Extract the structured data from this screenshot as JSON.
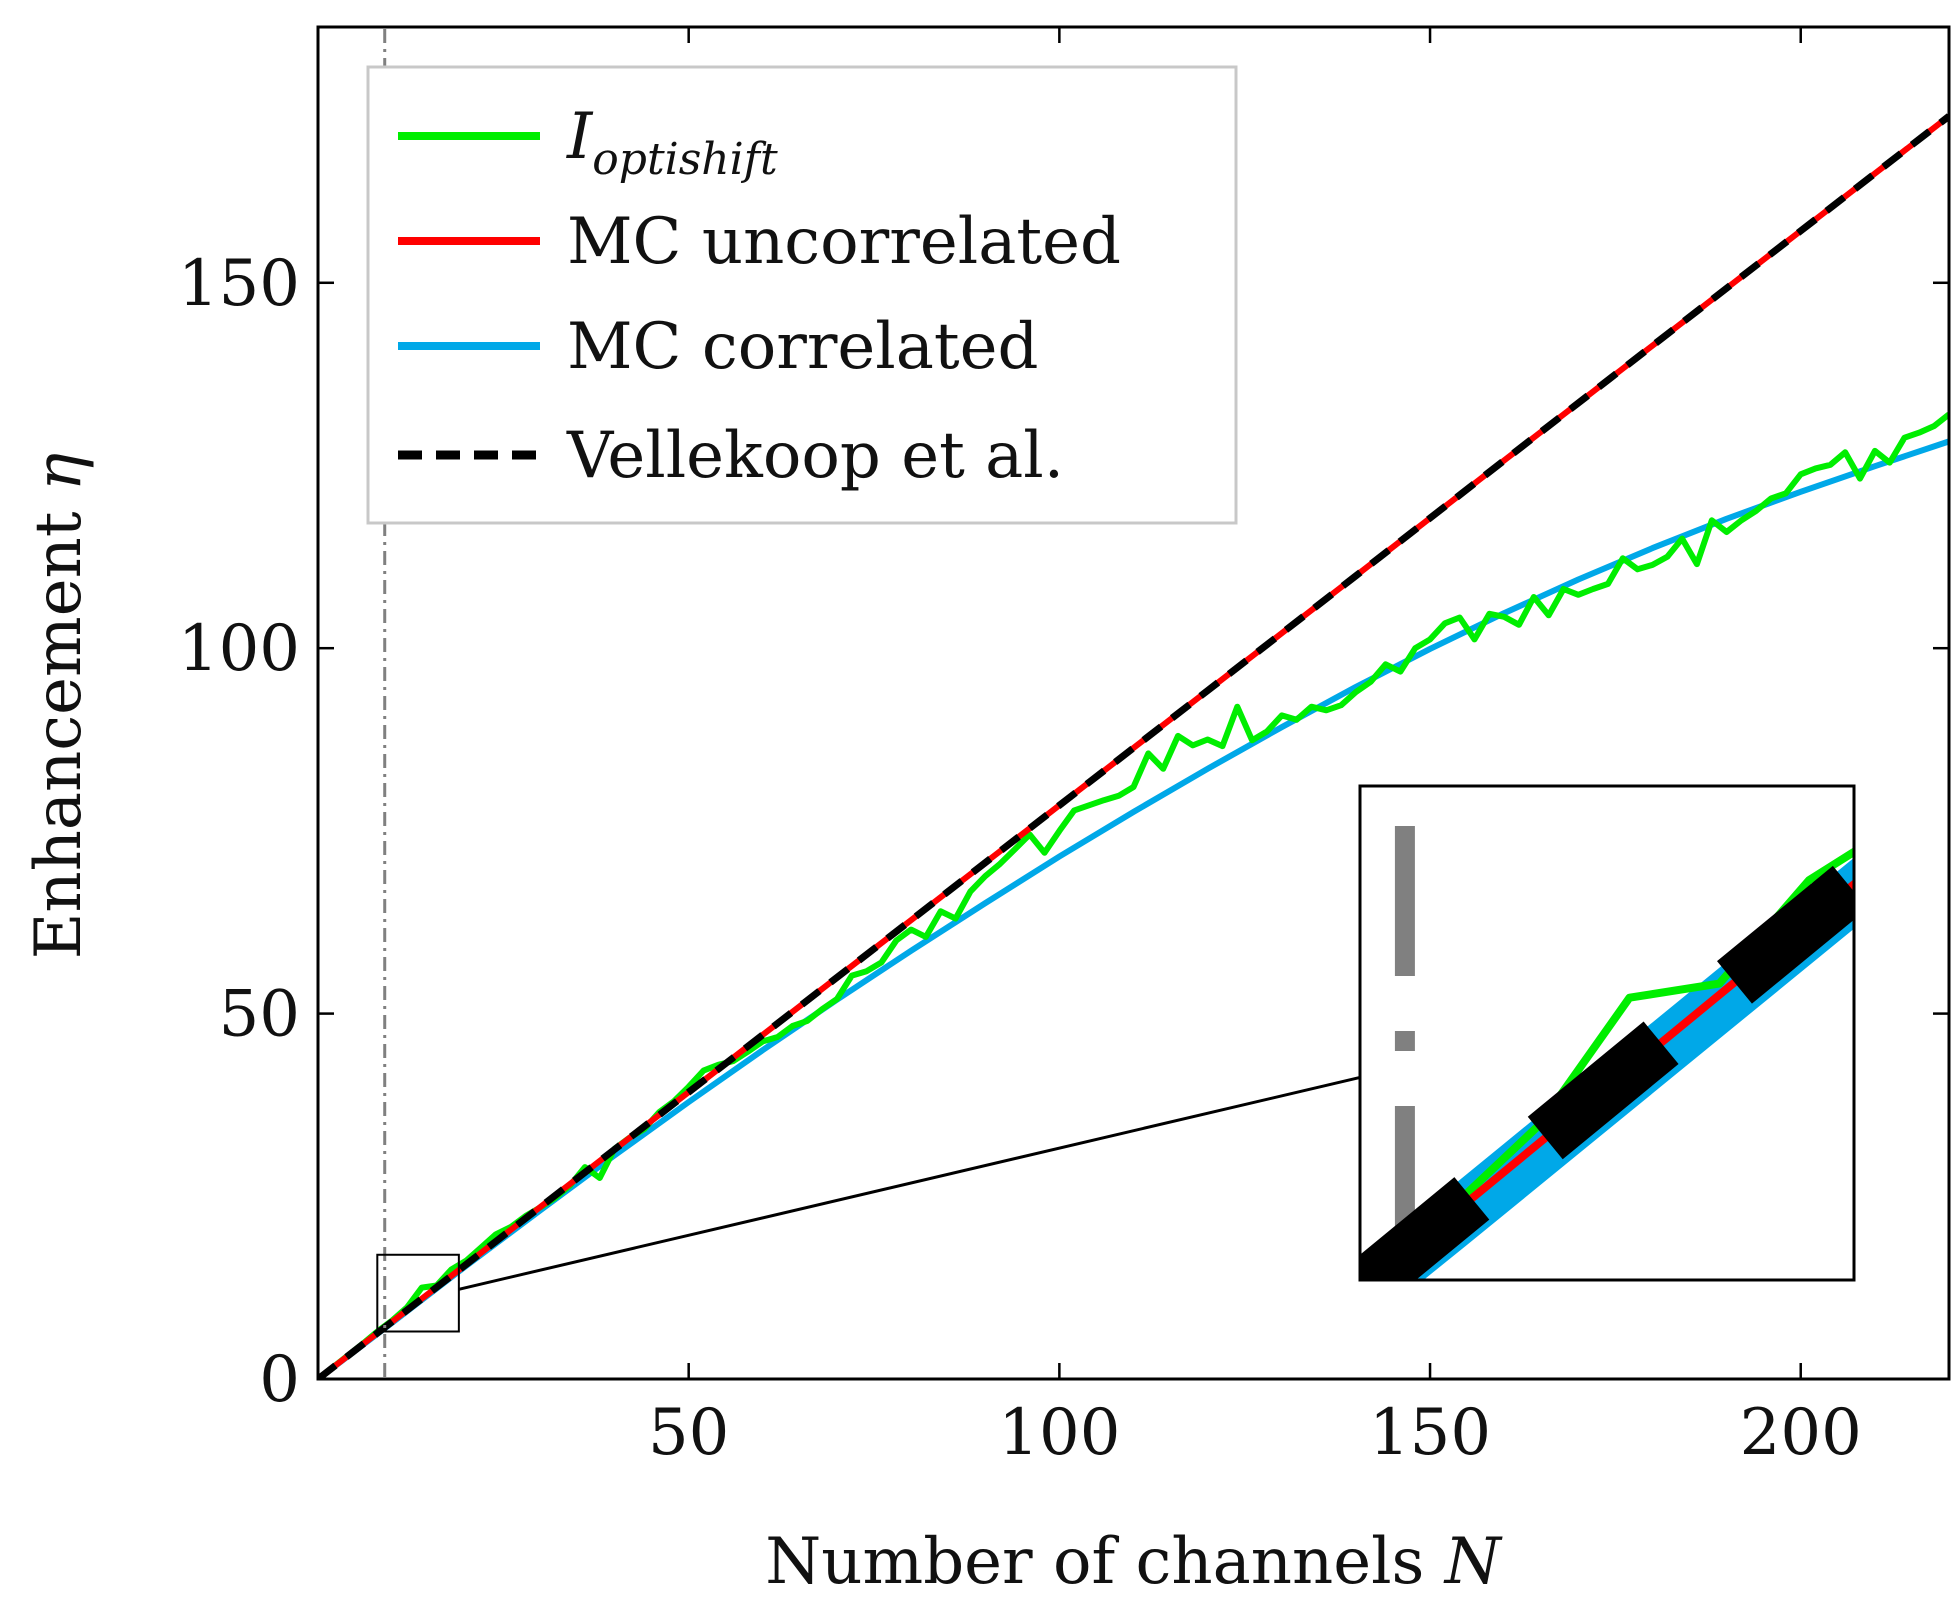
{
  "chart_data": {
    "type": "line",
    "title": "",
    "xlabel": "Number of channels",
    "xlabel_var": "N",
    "ylabel": "Enhancement",
    "ylabel_var": "η",
    "xlim": [
      0,
      220
    ],
    "ylim": [
      0,
      185
    ],
    "xticks": [
      50,
      100,
      150,
      200
    ],
    "yticks": [
      0,
      50,
      100,
      150
    ],
    "grid": false,
    "legend_position": "top-left",
    "vertical_marker": {
      "x": 9,
      "style": "dash-dot",
      "color": "#808080"
    },
    "series": [
      {
        "name": "I",
        "name_subscript": "optishift",
        "color": "#00ee00",
        "style": "solid",
        "x": [
          2,
          4,
          6,
          8,
          10,
          12,
          14,
          16,
          18,
          20,
          22,
          24,
          26,
          28,
          30,
          32,
          34,
          36,
          38,
          40,
          42,
          44,
          46,
          48,
          50,
          52,
          54,
          56,
          58,
          60,
          62,
          64,
          66,
          68,
          70,
          72,
          74,
          76,
          78,
          80,
          82,
          84,
          86,
          88,
          90,
          92,
          94,
          96,
          98,
          100,
          102,
          104,
          106,
          108,
          110,
          112,
          114,
          116,
          118,
          120,
          122,
          124,
          126,
          128,
          130,
          132,
          134,
          136,
          138,
          140,
          142,
          144,
          146,
          148,
          150,
          152,
          154,
          156,
          158,
          160,
          162,
          164,
          166,
          168,
          170,
          172,
          174,
          176,
          178,
          180,
          182,
          184,
          186,
          188,
          190,
          192,
          194,
          196,
          198,
          200,
          202,
          204,
          206,
          208,
          210,
          212,
          214,
          216,
          218,
          220
        ],
        "y": [
          1.6,
          3.2,
          4.8,
          6.5,
          8,
          9.8,
          12.5,
          12.8,
          15,
          16.2,
          18,
          19.8,
          20.8,
          22.3,
          23.5,
          24.8,
          26.5,
          29,
          27.5,
          31.5,
          33,
          34.2,
          36.5,
          38,
          40,
          42.2,
          43,
          43.5,
          44.8,
          46.2,
          46.8,
          48.3,
          49,
          50.6,
          52,
          55.2,
          55.8,
          57,
          60,
          61.5,
          60.5,
          64,
          63,
          66.7,
          68.8,
          70.5,
          72.5,
          74.5,
          72,
          75,
          77.8,
          78.5,
          79.2,
          79.8,
          81,
          85.6,
          83.5,
          88,
          86.7,
          87.5,
          86.6,
          92,
          87.4,
          88.6,
          90.8,
          90.2,
          92,
          91.5,
          92.2,
          94,
          95.4,
          97.8,
          96.8,
          100,
          101.2,
          103.4,
          104.2,
          101.2,
          104.7,
          104.3,
          103.2,
          107,
          104.5,
          108.1,
          107.3,
          108.1,
          108.8,
          112.3,
          110.8,
          111.4,
          112.5,
          115,
          111.5,
          117.5,
          115.9,
          117.5,
          118.8,
          120.5,
          121.2,
          123.8,
          124.6,
          125.1,
          126.8,
          123.2,
          127,
          125.4,
          128.8,
          129.5,
          130.4,
          132
        ]
      },
      {
        "name": "MC uncorrelated",
        "color": "#ff0000",
        "style": "solid",
        "x": [
          0,
          20,
          40,
          60,
          80,
          100,
          120,
          140,
          160,
          180,
          200,
          220
        ],
        "y": [
          0,
          15.7,
          31.4,
          47.1,
          62.8,
          78.5,
          94.2,
          109.9,
          125.7,
          141.4,
          157.1,
          172.8
        ]
      },
      {
        "name": "MC correlated",
        "color": "#00a8e8",
        "style": "solid",
        "x": [
          0,
          10,
          20,
          30,
          40,
          50,
          60,
          70,
          80,
          90,
          100,
          110,
          120,
          130,
          140,
          150,
          160,
          170,
          180,
          190,
          200,
          210,
          220
        ],
        "y": [
          0,
          7.7,
          15.5,
          23.1,
          30.6,
          37.9,
          45,
          51.9,
          58.6,
          65.1,
          71.5,
          77.6,
          83.5,
          89.2,
          94.7,
          99.9,
          104.8,
          109.4,
          113.7,
          117.7,
          121.4,
          124.9,
          128.3
        ]
      },
      {
        "name": "Vellekoop et al.",
        "color": "#000000",
        "style": "dashed",
        "x": [
          0,
          20,
          40,
          60,
          80,
          100,
          120,
          140,
          160,
          180,
          200,
          220
        ],
        "y": [
          0,
          15.7,
          31.4,
          47.1,
          62.8,
          78.5,
          94.2,
          109.9,
          125.7,
          141.4,
          157.1,
          172.8
        ]
      }
    ],
    "inset": {
      "zoom_region": {
        "xlim": [
          8,
          19
        ],
        "ylim": [
          6.5,
          17
        ]
      },
      "position": "lower-right"
    }
  }
}
